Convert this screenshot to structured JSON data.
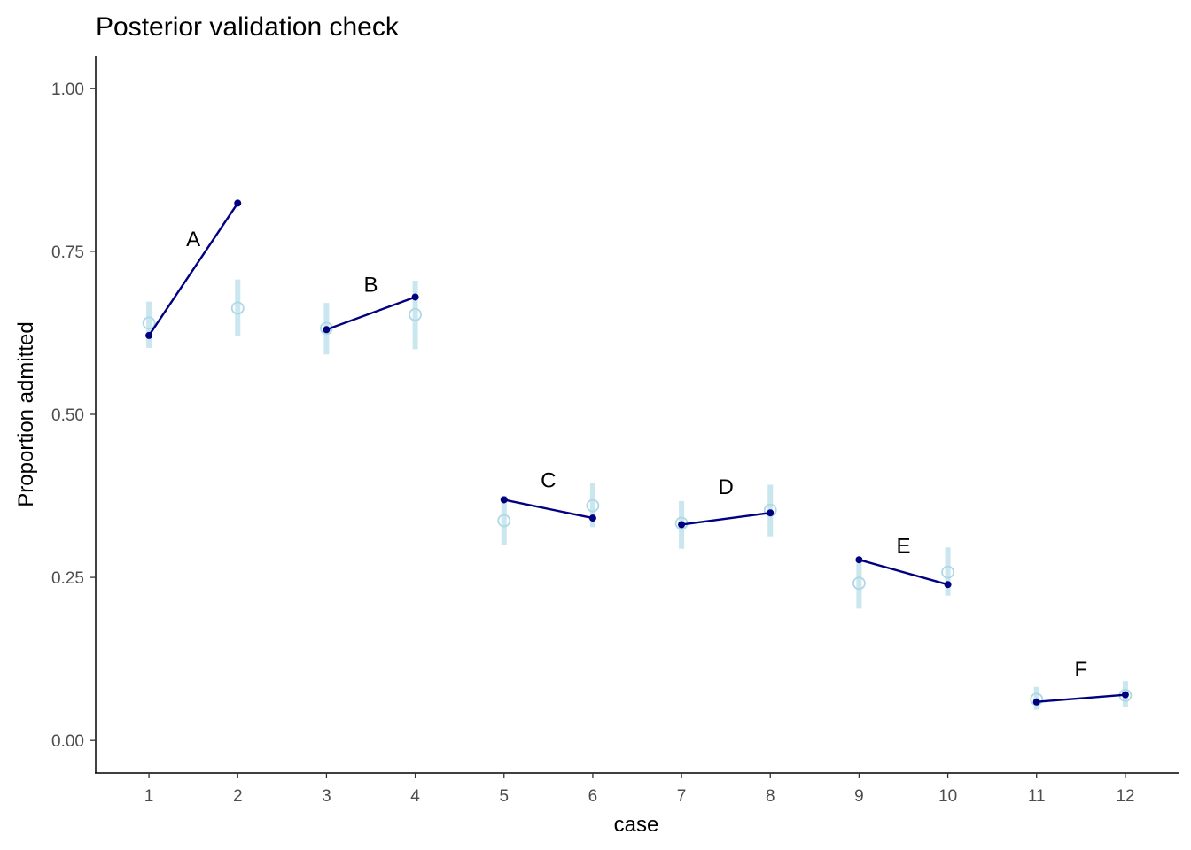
{
  "chart_data": {
    "type": "scatter",
    "title": "Posterior validation check",
    "xlabel": "case",
    "ylabel": "Proportion admitted",
    "xlim": [
      0.4,
      12.6
    ],
    "ylim": [
      -0.05,
      1.05
    ],
    "x_ticks": [
      "1",
      "2",
      "3",
      "4",
      "5",
      "6",
      "7",
      "8",
      "9",
      "10",
      "11",
      "12"
    ],
    "y_ticks": [
      "0.00",
      "0.25",
      "0.50",
      "0.75",
      "1.00"
    ],
    "grid": false,
    "legend": "none",
    "colors": {
      "observed": "#000080",
      "predicted": "#add8e6",
      "axis": "#000000",
      "ticks": "#4d4d4d"
    },
    "series": [
      {
        "role": "observed",
        "x": [
          1,
          2,
          3,
          4,
          5,
          6,
          7,
          8,
          9,
          10,
          11,
          12
        ],
        "y": [
          0.621,
          0.824,
          0.63,
          0.68,
          0.369,
          0.341,
          0.331,
          0.349,
          0.277,
          0.239,
          0.059,
          0.07
        ]
      },
      {
        "role": "predicted",
        "x": [
          1,
          2,
          3,
          4,
          5,
          6,
          7,
          8,
          9,
          10,
          11,
          12
        ],
        "y": [
          0.64,
          0.663,
          0.632,
          0.653,
          0.337,
          0.36,
          0.333,
          0.353,
          0.241,
          0.258,
          0.063,
          0.069
        ],
        "lower": [
          0.602,
          0.62,
          0.592,
          0.6,
          0.3,
          0.327,
          0.294,
          0.313,
          0.202,
          0.222,
          0.047,
          0.051
        ],
        "upper": [
          0.673,
          0.707,
          0.671,
          0.705,
          0.375,
          0.394,
          0.367,
          0.392,
          0.274,
          0.296,
          0.082,
          0.091
        ]
      }
    ],
    "annotations": [
      {
        "text": "A",
        "x": 1.5,
        "y": 0.77
      },
      {
        "text": "B",
        "x": 3.5,
        "y": 0.7
      },
      {
        "text": "C",
        "x": 5.5,
        "y": 0.4
      },
      {
        "text": "D",
        "x": 7.5,
        "y": 0.39
      },
      {
        "text": "E",
        "x": 9.5,
        "y": 0.3
      },
      {
        "text": "F",
        "x": 11.5,
        "y": 0.11
      }
    ]
  }
}
